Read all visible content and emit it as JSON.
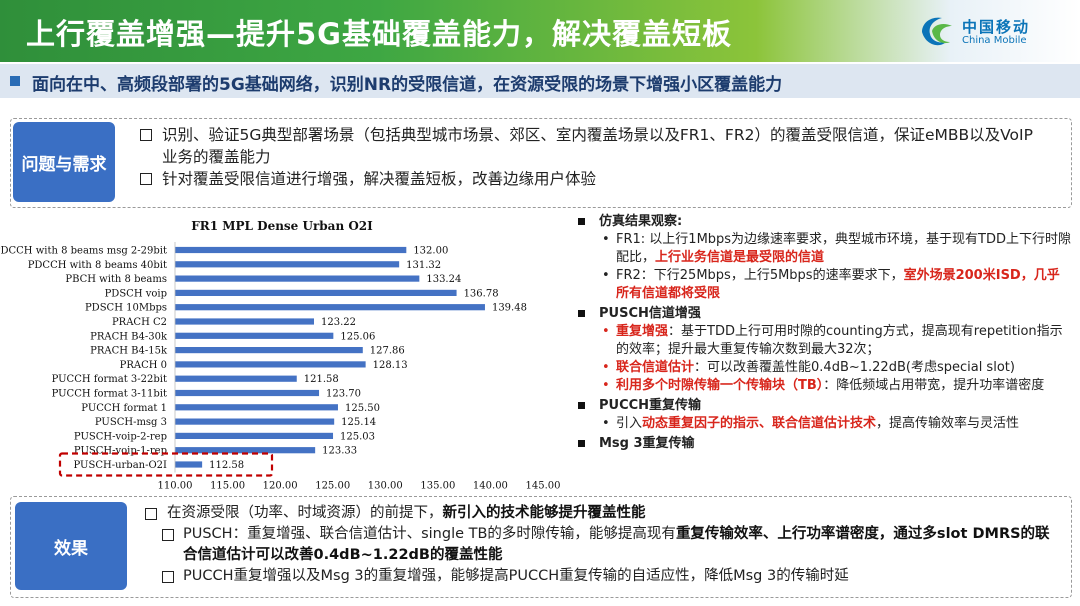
{
  "header": {
    "title": "上行覆盖增强—提升5G基础覆盖能力，解决覆盖短板",
    "logo_cn": "中国移动",
    "logo_en": "China Mobile"
  },
  "subheader": "面向在中、高频段部署的5G基础网络，识别NR的受限信道，在资源受限的场景下增强小区覆盖能力",
  "problem": {
    "label": "问题与需求",
    "items": [
      "识别、验证5G典型部署场景（包括典型城市场景、郊区、室内覆盖场景以及FR1、FR2）的覆盖受限信道，保证eMBB以及VoIP业务的覆盖能力",
      "针对覆盖受限信道进行增强，解决覆盖短板，改善边缘用户体验"
    ]
  },
  "chart_data": {
    "type": "bar",
    "orientation": "horizontal",
    "title": "FR1 MPL Dense Urban O2I",
    "categories": [
      "PDCCH with 8 beams msg 2-29bit",
      "PDCCH with 8 beams 40bit",
      "PBCH with 8 beams",
      "PDSCH voip",
      "PDSCH 10Mbps",
      "PRACH C2",
      "PRACH B4-30k",
      "PRACH B4-15k",
      "PRACH 0",
      "PUCCH format 3-22bit",
      "PUCCH format 3-11bit",
      "PUCCH format 1",
      "PUSCH-msg 3",
      "PUSCH-voip-2-rep",
      "PUSCH-voip-1-rep",
      "PUSCH-urban-O2I"
    ],
    "values": [
      132.0,
      131.32,
      133.24,
      136.78,
      139.48,
      123.22,
      125.06,
      127.86,
      128.13,
      121.58,
      123.7,
      125.5,
      125.14,
      125.03,
      123.33,
      112.58
    ],
    "value_labels": [
      "132.00",
      "131.32",
      "133.24",
      "136.78",
      "139.48",
      "123.22",
      "125.06",
      "127.86",
      "128.13",
      "121.58",
      "123.70",
      "125.50",
      "125.14",
      "125.03",
      "123.33",
      "112.58"
    ],
    "xlim": [
      110,
      145
    ],
    "xticks": [
      "110.00",
      "115.00",
      "120.00",
      "125.00",
      "130.00",
      "135.00",
      "140.00",
      "145.00"
    ],
    "highlight_category": "PUSCH-urban-O2I",
    "bar_color": "#4472c4",
    "highlight_color": "#c00000"
  },
  "observations": {
    "sim_title": "仿真结果观察:",
    "fr1_a": "FR1: 以上行1Mbps为边缘速率要求，典型城市环境，基于现有TDD上下行时隙配比，",
    "fr1_red": "上行业务信道是最受限的信道",
    "fr2_a": "FR2：下行25Mbps，上行5Mbps的速率要求下，",
    "fr2_red": "室外场景200米ISD，几乎所有信道都将受限",
    "pusch_title": "PUSCH信道增强",
    "pusch_1_red": "重复增强",
    "pusch_1": "：基于TDD上行可用时隙的counting方式，提高现有repetition指示的效率；提升最大重复传输次数到最大32次；",
    "pusch_2_red": "联合信道估计",
    "pusch_2": "：可以改善覆盖性能0.4dB~1.22dB(考虑special slot)",
    "pusch_3_red": "利用多个时隙传输一个传输块（TB）",
    "pusch_3": "：降低频域占用带宽，提升功率谱密度",
    "pucch_title": "PUCCH重复传输",
    "pucch_1a": "引入",
    "pucch_1_red": "动态重复因子的指示、联合信道估计技术",
    "pucch_1b": "，提高传输效率与灵活性",
    "msg3_title": "Msg 3重复传输",
    "dot_char": "•"
  },
  "effect": {
    "label": "效果",
    "l1a": "在资源受限（功率、时域资源）的前提下，",
    "l1b": "新引入的技术能够提升覆盖性能",
    "l2a": "PUSCH：重复增强、联合信道估计、single TB的多时隙传输，能够提高现有",
    "l2b": "重复传输效率、上行功率谱密度，通过多slot DMRS的联合信道估计可以改善0.4dB~1.22dB的覆盖性能",
    "l3": "PUCCH重复增强以及Msg 3的重复增强，能够提高PUCCH重复传输的自适应性，降低Msg 3的传输时延"
  }
}
